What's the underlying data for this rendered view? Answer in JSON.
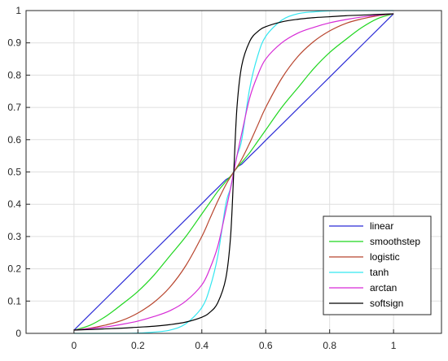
{
  "chart_data": {
    "type": "line",
    "title": "",
    "xlabel": "",
    "ylabel": "",
    "xlim": [
      -0.15,
      1.15
    ],
    "ylim": [
      0,
      1
    ],
    "x_ticks": [
      0,
      0.2,
      0.4,
      0.6,
      0.8,
      1
    ],
    "x_tick_labels": [
      "0",
      "0.2",
      "0.4",
      "0.6",
      "0.8",
      "1"
    ],
    "y_ticks": [
      0,
      0.1,
      0.2,
      0.3,
      0.4,
      0.5,
      0.6,
      0.7,
      0.8,
      0.9,
      1
    ],
    "y_tick_labels": [
      "0",
      "0.1",
      "0.2",
      "0.3",
      "0.4",
      "0.5",
      "0.6",
      "0.7",
      "0.8",
      "0.9",
      "1"
    ],
    "grid": true,
    "legend_position": "bottom-right",
    "x": [
      0,
      0.05,
      0.1,
      0.15,
      0.2,
      0.25,
      0.3,
      0.35,
      0.4,
      0.425,
      0.45,
      0.475,
      0.49,
      0.5,
      0.51,
      0.525,
      0.55,
      0.575,
      0.6,
      0.65,
      0.7,
      0.75,
      0.8,
      0.85,
      0.9,
      0.95,
      1
    ],
    "series": [
      {
        "name": "linear",
        "color": "#2b2bd6",
        "values": [
          0.01,
          0.059,
          0.108,
          0.157,
          0.206,
          0.255,
          0.304,
          0.353,
          0.402,
          0.427,
          0.451,
          0.476,
          0.485,
          0.5,
          0.515,
          0.524,
          0.549,
          0.573,
          0.598,
          0.647,
          0.696,
          0.745,
          0.794,
          0.843,
          0.892,
          0.941,
          0.99
        ]
      },
      {
        "name": "smoothstep",
        "color": "#1fd61f",
        "values": [
          0.01,
          0.025,
          0.053,
          0.09,
          0.13,
          0.18,
          0.24,
          0.3,
          0.37,
          0.405,
          0.44,
          0.47,
          0.487,
          0.5,
          0.513,
          0.53,
          0.56,
          0.595,
          0.63,
          0.7,
          0.76,
          0.82,
          0.87,
          0.91,
          0.947,
          0.975,
          0.99
        ]
      },
      {
        "name": "logistic",
        "color": "#b8452e",
        "values": [
          0.01,
          0.016,
          0.026,
          0.04,
          0.063,
          0.096,
          0.143,
          0.21,
          0.3,
          0.355,
          0.41,
          0.46,
          0.485,
          0.5,
          0.515,
          0.54,
          0.59,
          0.645,
          0.7,
          0.79,
          0.857,
          0.904,
          0.937,
          0.96,
          0.974,
          0.984,
          0.99
        ]
      },
      {
        "name": "tanh",
        "color": "#33e6f0",
        "values": [
          0.0,
          0.0,
          0.0,
          0.0,
          0.001,
          0.004,
          0.01,
          0.03,
          0.08,
          0.14,
          0.24,
          0.4,
          0.45,
          0.5,
          0.55,
          0.6,
          0.76,
          0.86,
          0.92,
          0.97,
          0.99,
          0.996,
          0.999,
          1.0,
          1.0,
          1.0,
          1.0
        ]
      },
      {
        "name": "arctan",
        "color": "#d62bd6",
        "values": [
          0.01,
          0.015,
          0.02,
          0.028,
          0.038,
          0.052,
          0.07,
          0.1,
          0.15,
          0.2,
          0.27,
          0.38,
          0.45,
          0.5,
          0.55,
          0.62,
          0.73,
          0.8,
          0.85,
          0.9,
          0.93,
          0.948,
          0.962,
          0.972,
          0.98,
          0.986,
          0.99
        ]
      },
      {
        "name": "softsign",
        "color": "#000000",
        "values": [
          0.01,
          0.012,
          0.014,
          0.016,
          0.019,
          0.022,
          0.027,
          0.035,
          0.05,
          0.065,
          0.095,
          0.17,
          0.3,
          0.5,
          0.7,
          0.83,
          0.905,
          0.935,
          0.95,
          0.965,
          0.973,
          0.978,
          0.981,
          0.984,
          0.986,
          0.988,
          0.99
        ]
      }
    ]
  },
  "colors": {
    "axis": "#262626",
    "grid": "#dfdfdf",
    "legend_border": "#262626"
  }
}
